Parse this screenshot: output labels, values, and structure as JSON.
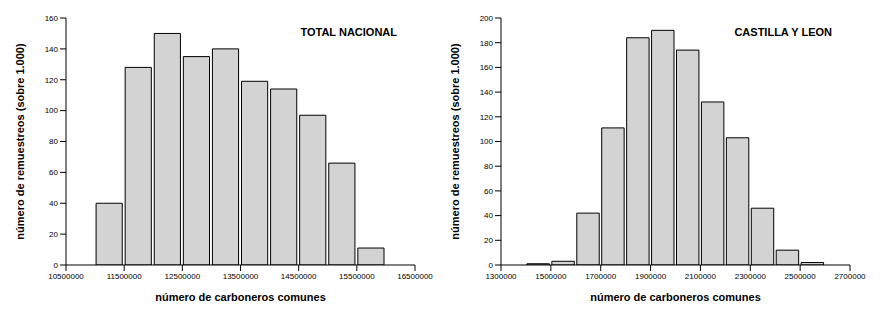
{
  "chart_data": [
    {
      "type": "histogram",
      "title": "TOTAL NACIONAL",
      "x_label": "número de carboneros comunes",
      "y_label": "número de remuestreos (sobre 1.000)",
      "bins": [
        11000000,
        11500000,
        12000000,
        12500000,
        13000000,
        13500000,
        14000000,
        14500000,
        15000000,
        15500000,
        16000000
      ],
      "counts": [
        40,
        128,
        150,
        135,
        140,
        119,
        114,
        97,
        66,
        11
      ],
      "xlim": [
        10500000,
        16500000
      ],
      "xticks": [
        10500000,
        11500000,
        12500000,
        13500000,
        14500000,
        15500000,
        16500000
      ],
      "ylim": [
        0,
        160
      ],
      "yticks": [
        0,
        20,
        40,
        60,
        80,
        100,
        120,
        140,
        160
      ],
      "color": "#d3d3d3"
    },
    {
      "type": "histogram",
      "title": "CASTILLA Y LEON",
      "x_label": "número de carboneros comunes",
      "y_label": "número de remuestreos (sobre 1.000)",
      "bins": [
        1400000,
        1500000,
        1600000,
        1700000,
        1800000,
        1900000,
        2000000,
        2100000,
        2200000,
        2300000,
        2400000,
        2500000,
        2600000
      ],
      "counts": [
        1,
        3,
        42,
        111,
        184,
        190,
        174,
        132,
        103,
        46,
        12,
        2
      ],
      "xlim": [
        1300000,
        2700000
      ],
      "xticks": [
        1300000,
        1500000,
        1700000,
        1900000,
        2100000,
        2300000,
        2500000,
        2700000
      ],
      "ylim": [
        0,
        200
      ],
      "yticks": [
        0,
        20,
        40,
        60,
        80,
        100,
        120,
        140,
        160,
        180,
        200
      ],
      "color": "#d3d3d3"
    }
  ]
}
